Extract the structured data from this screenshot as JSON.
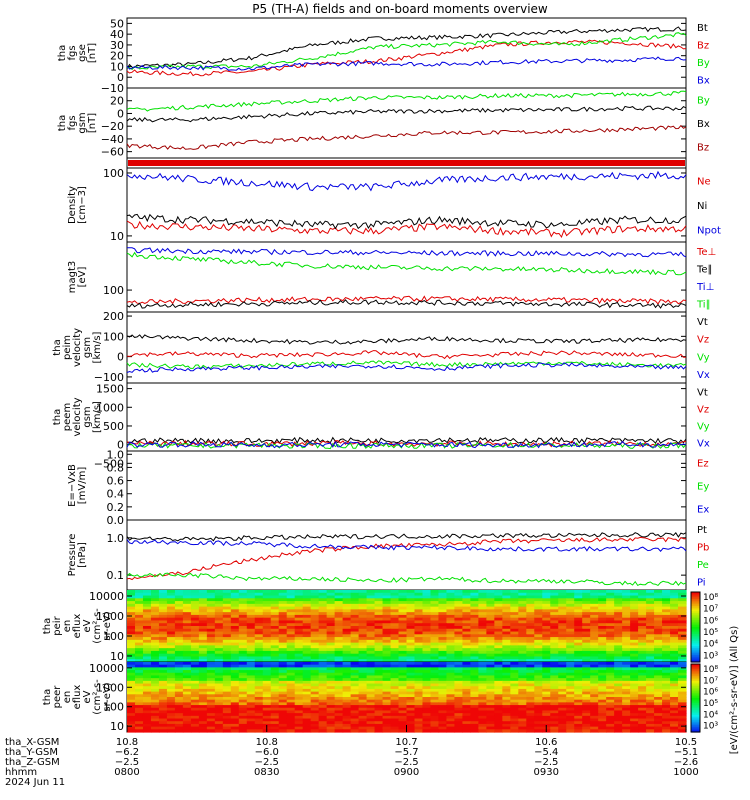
{
  "title": "P5 (TH-A) fields and on-board moments overview",
  "colors": {
    "black": "#000000",
    "red": "#e00000",
    "green": "#00e000",
    "blue": "#0000e0",
    "darkred": "#a00000",
    "spec_bg": "#e00000"
  },
  "chart_data": [
    {
      "type": "line",
      "ylabel": [
        "tha",
        "fgs",
        "gse",
        "[nT]"
      ],
      "ylim": [
        -10,
        55
      ],
      "ticks": [
        "50",
        "40",
        "30",
        "20",
        "10",
        "0",
        "−10"
      ],
      "tick_values": [
        50,
        40,
        30,
        20,
        10,
        0,
        -10
      ],
      "series": [
        {
          "name": "Bt",
          "color": "black",
          "values": [
            10,
            12,
            18,
            30,
            36,
            37,
            39,
            42,
            44,
            45
          ]
        },
        {
          "name": "Bz",
          "color": "red",
          "values": [
            5,
            3,
            5,
            12,
            15,
            22,
            30,
            33,
            32,
            28
          ]
        },
        {
          "name": "By",
          "color": "green",
          "values": [
            8,
            10,
            10,
            18,
            28,
            30,
            33,
            30,
            35,
            40
          ]
        },
        {
          "name": "Bx",
          "color": "blue",
          "values": [
            9,
            9,
            8,
            12,
            13,
            12,
            14,
            15,
            16,
            18
          ]
        }
      ]
    },
    {
      "type": "line",
      "ylabel": [
        "tha",
        "fgs",
        "gsm",
        "[nT]"
      ],
      "ylim": [
        -70,
        40
      ],
      "ticks": [
        "20",
        "0",
        "−20",
        "−40",
        "−60"
      ],
      "tick_values": [
        20,
        0,
        -20,
        -40,
        -60
      ],
      "series": [
        {
          "name": "By",
          "color": "green",
          "values": [
            5,
            10,
            15,
            20,
            25,
            25,
            28,
            28,
            30,
            32
          ]
        },
        {
          "name": "Bx",
          "color": "black",
          "values": [
            -10,
            -10,
            -5,
            0,
            3,
            4,
            5,
            6,
            8,
            8
          ]
        },
        {
          "name": "Bz",
          "color": "darkred",
          "values": [
            -50,
            -55,
            -45,
            -40,
            -35,
            -30,
            -30,
            -28,
            -25,
            -22
          ]
        }
      ]
    },
    {
      "type": "heatmap",
      "note": "quality flag bar",
      "color": "red"
    },
    {
      "type": "line",
      "ylabel": [
        "Density",
        "[cm−3]"
      ],
      "scale": "log",
      "ylim": [
        8,
        120
      ],
      "ticks": [
        "100",
        "10"
      ],
      "tick_values": [
        100,
        10
      ],
      "series": [
        {
          "name": "Ne",
          "color": "red",
          "values": [
            15,
            14,
            13,
            12,
            12,
            14,
            12,
            11,
            13,
            13
          ]
        },
        {
          "name": "Ni",
          "color": "black",
          "values": [
            20,
            18,
            17,
            15,
            15,
            18,
            16,
            15,
            18,
            18
          ]
        },
        {
          "name": "Npot",
          "color": "blue",
          "values": [
            95,
            80,
            70,
            60,
            60,
            75,
            85,
            88,
            90,
            92
          ]
        }
      ]
    },
    {
      "type": "line",
      "ylabel": [
        "magt3",
        "[eV]"
      ],
      "scale": "log",
      "ylim": [
        30,
        1400
      ],
      "ticks": [
        "100"
      ],
      "tick_values": [
        100
      ],
      "series": [
        {
          "name": "Te⊥",
          "color": "red",
          "values": [
            50,
            55,
            58,
            60,
            62,
            62,
            60,
            58,
            55,
            52
          ]
        },
        {
          "name": "Te∥",
          "color": "black",
          "values": [
            42,
            45,
            47,
            50,
            52,
            50,
            48,
            46,
            44,
            42
          ]
        },
        {
          "name": "Ti⊥",
          "color": "blue",
          "values": [
            900,
            850,
            820,
            800,
            780,
            760,
            750,
            740,
            720,
            700
          ]
        },
        {
          "name": "Ti∥",
          "color": "green",
          "values": [
            700,
            550,
            450,
            380,
            350,
            330,
            320,
            300,
            280,
            260
          ]
        }
      ]
    },
    {
      "type": "line",
      "ylabel": [
        "tha",
        "peim",
        "velocity",
        "gsm",
        "[km/s]"
      ],
      "ylim": [
        -130,
        220
      ],
      "ticks": [
        "200",
        "100",
        "0",
        "−100"
      ],
      "tick_values": [
        200,
        100,
        0,
        -100
      ],
      "series": [
        {
          "name": "Vt",
          "color": "black",
          "values": [
            100,
            90,
            80,
            70,
            75,
            90,
            80,
            75,
            80,
            85
          ]
        },
        {
          "name": "Vz",
          "color": "red",
          "values": [
            10,
            15,
            5,
            10,
            20,
            0,
            10,
            20,
            10,
            5
          ]
        },
        {
          "name": "Vy",
          "color": "green",
          "values": [
            -40,
            -50,
            -45,
            -35,
            -30,
            -40,
            -35,
            -30,
            -40,
            -45
          ]
        },
        {
          "name": "Vx",
          "color": "blue",
          "values": [
            -70,
            -60,
            -55,
            -50,
            -45,
            -60,
            -45,
            -40,
            -50,
            -55
          ]
        }
      ]
    },
    {
      "type": "line",
      "ylabel": [
        "tha",
        "peem",
        "velocity",
        "gsm",
        "[km/s]"
      ],
      "ylim": [
        -170,
        1650
      ],
      "ticks": [
        "1500",
        "1000",
        "500",
        "0",
        "−500"
      ],
      "tick_values": [
        1500,
        1000,
        500,
        0,
        -500
      ],
      "series": [
        {
          "name": "Vt",
          "color": "black",
          "values": [
            100,
            110,
            100,
            120,
            110,
            130,
            110,
            120,
            110,
            100
          ]
        },
        {
          "name": "Vz",
          "color": "red",
          "values": [
            20,
            30,
            10,
            40,
            20,
            30,
            10,
            20,
            30,
            20
          ]
        },
        {
          "name": "Vy",
          "color": "green",
          "values": [
            -20,
            -30,
            -10,
            -40,
            -20,
            -30,
            -10,
            -20,
            -30,
            -20
          ]
        },
        {
          "name": "Vx",
          "color": "blue",
          "values": [
            0,
            10,
            -10,
            0,
            10,
            0,
            -10,
            0,
            10,
            0
          ]
        }
      ]
    },
    {
      "type": "line",
      "ylabel": [
        "E=−VxB",
        "[mV/m]"
      ],
      "ylim": [
        0,
        1.05
      ],
      "ticks": [
        "1.0",
        "0.8",
        "0.6",
        "0.4",
        "0.2",
        "0.0"
      ],
      "tick_values": [
        1.0,
        0.8,
        0.6,
        0.4,
        0.2,
        0.0
      ],
      "series": [
        {
          "name": "Ez",
          "color": "red",
          "values": []
        },
        {
          "name": "Ey",
          "color": "green",
          "values": []
        },
        {
          "name": "Ex",
          "color": "blue",
          "values": []
        }
      ]
    },
    {
      "type": "line",
      "ylabel": [
        "Pressure",
        "[nPa]"
      ],
      "scale": "log",
      "ylim": [
        0.04,
        3
      ],
      "ticks": [
        "1.0",
        "0.1"
      ],
      "tick_values": [
        1.0,
        0.1
      ],
      "series": [
        {
          "name": "Pt",
          "color": "black",
          "values": [
            1.0,
            0.9,
            1.0,
            1.05,
            1.1,
            1.1,
            1.15,
            1.15,
            1.2,
            1.2
          ]
        },
        {
          "name": "Pb",
          "color": "red",
          "values": [
            0.08,
            0.12,
            0.25,
            0.45,
            0.6,
            0.65,
            0.8,
            0.85,
            0.9,
            0.9
          ]
        },
        {
          "name": "Pe",
          "color": "green",
          "values": [
            0.1,
            0.1,
            0.08,
            0.08,
            0.07,
            0.08,
            0.07,
            0.07,
            0.06,
            0.06
          ]
        },
        {
          "name": "Pi",
          "color": "blue",
          "values": [
            0.8,
            0.75,
            0.7,
            0.6,
            0.55,
            0.55,
            0.5,
            0.5,
            0.5,
            0.5
          ]
        }
      ]
    },
    {
      "type": "heatmap",
      "ylabel": [
        "tha",
        "peir",
        "en",
        "eflux",
        "eV",
        "(cm²-s-",
        "sr-eV)"
      ],
      "scale": "log",
      "ylim": [
        5,
        20000
      ],
      "ticks": [
        "10000",
        "1000",
        "100",
        "10"
      ],
      "tick_values": [
        10000,
        1000,
        100,
        10
      ]
    },
    {
      "type": "heatmap",
      "ylabel": [
        "tha",
        "peer",
        "en",
        "eflux",
        "eV",
        "(cm²-s-",
        "sr-eV)"
      ],
      "scale": "log",
      "ylim": [
        5,
        20000
      ],
      "ticks": [
        "10000",
        "1000",
        "100",
        "10"
      ],
      "tick_values": [
        10000,
        1000,
        100,
        10
      ]
    }
  ],
  "colorbar": {
    "ticks_upper": [
      "10⁸",
      "10⁷",
      "10⁶",
      "10⁵",
      "10⁴",
      "10³"
    ],
    "ticks_lower": [
      "10⁸",
      "10⁷",
      "10⁶",
      "10⁵",
      "10⁴",
      "10³"
    ],
    "label": "[eV/(cm²-s-sr-eV)] (All Qs)"
  },
  "x_axis": {
    "ticks": [
      "0800",
      "0830",
      "0900",
      "0930",
      "1000"
    ],
    "ephemeris": [
      {
        "label": "tha_X-GSM",
        "values": [
          "10.8",
          "10.8",
          "10.7",
          "10.6",
          "10.5"
        ]
      },
      {
        "label": "tha_Y-GSM",
        "values": [
          "−6.2",
          "−6.0",
          "−5.7",
          "−5.4",
          "−5.1"
        ]
      },
      {
        "label": "tha_Z-GSM",
        "values": [
          "−2.5",
          "−2.5",
          "−2.5",
          "−2.5",
          "−2.6"
        ]
      },
      {
        "label": "hhmm",
        "values": [
          "0800",
          "0830",
          "0900",
          "0930",
          "1000"
        ]
      }
    ],
    "date": "2024 Jun 11"
  }
}
